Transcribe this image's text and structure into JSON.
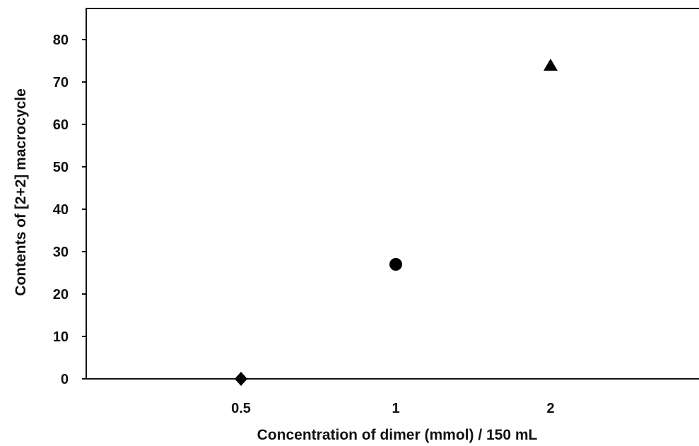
{
  "chart_data": {
    "type": "scatter",
    "title": "",
    "xlabel": "Concentration of dimer (mmol) / 150 mL",
    "ylabel": "Contents of [2+2] macrocycle",
    "categories": [
      "0.5",
      "1",
      "2"
    ],
    "y_ticks": [
      "0",
      "10",
      "20",
      "30",
      "40",
      "50",
      "60",
      "70",
      "80"
    ],
    "ylim": [
      0,
      85
    ],
    "grid": false,
    "legend": "none",
    "points": [
      {
        "x": "0.5",
        "y": 0,
        "marker": "diamond"
      },
      {
        "x": "1",
        "y": 27,
        "marker": "circle"
      },
      {
        "x": "2",
        "y": 74,
        "marker": "triangle"
      }
    ],
    "colors": {
      "axis": "#111111",
      "marker": "#000000"
    }
  }
}
